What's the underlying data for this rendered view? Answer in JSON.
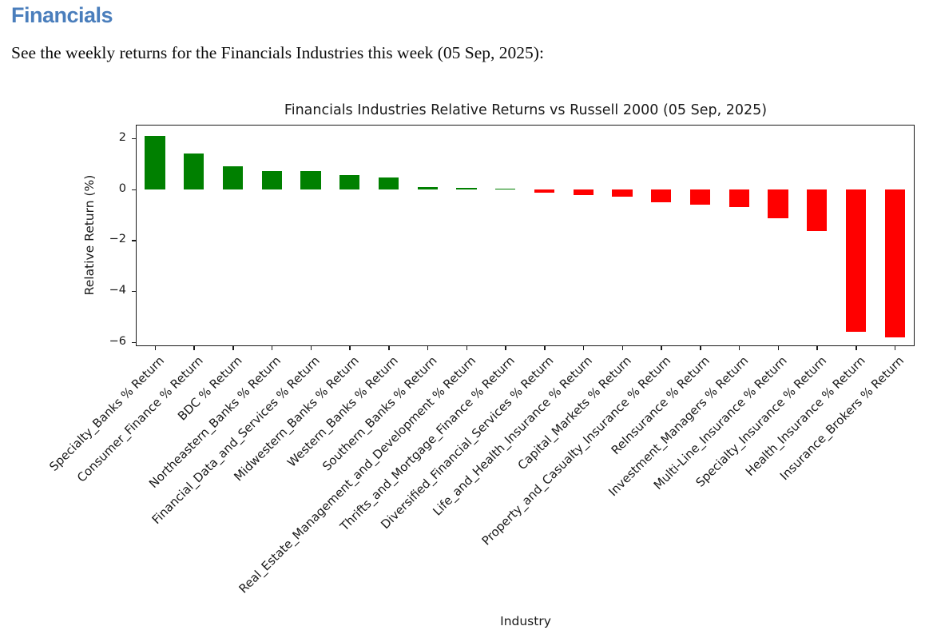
{
  "page": {
    "heading": "Financials",
    "subtitle": "See the weekly returns for the Financials Industries this week (05 Sep, 2025):"
  },
  "colors": {
    "heading_blue": "#4a7ebc",
    "positive_bar": "#008000",
    "negative_bar": "#ff0000",
    "axis": "#1a1a1a"
  },
  "chart_data": {
    "type": "bar",
    "title": "Financials Industries Relative Returns vs Russell 2000 (05 Sep, 2025)",
    "xlabel": "Industry",
    "ylabel": "Relative Return (%)",
    "ylim": [
      -6.15,
      2.55
    ],
    "yticks": [
      2,
      0,
      -2,
      -4,
      -6
    ],
    "grid": false,
    "legend": "none",
    "bar_color_rule": "green if value >= 0 else red",
    "categories": [
      "Specialty_Banks % Return",
      "Consumer_Finance % Return",
      "BDC % Return",
      "Northeastern_Banks % Return",
      "Financial_Data_and_Services % Return",
      "Midwestern_Banks % Return",
      "Western_Banks % Return",
      "Southern_Banks % Return",
      "Real_Estate_Management_and_Development % Return",
      "Thrifts_and_Mortgage_Finance % Return",
      "Diversified_Financial_Services % Return",
      "Life_and_Health_Insurance % Return",
      "Capital_Markets % Return",
      "Property_and_Casualty_Insurance % Return",
      "ReInsurance % Return",
      "Investment_Managers % Return",
      "Multi-Line_Insurance % Return",
      "Specialty_Insurance % Return",
      "Health_Insurance % Return",
      "Insurance_Brokers % Return"
    ],
    "values": [
      2.1,
      1.4,
      0.9,
      0.72,
      0.73,
      0.55,
      0.48,
      0.1,
      0.05,
      0.02,
      -0.12,
      -0.22,
      -0.3,
      -0.5,
      -0.6,
      -0.7,
      -1.15,
      -1.65,
      -5.6,
      -5.8
    ]
  }
}
